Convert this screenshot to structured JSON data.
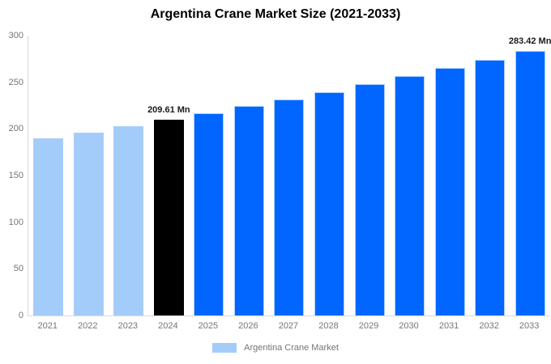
{
  "title": "Argentina Crane Market Size (2021-2033)",
  "legend": {
    "label": "Argentina Crane Market",
    "swatch_color": "#a3ccfa"
  },
  "colors": {
    "historical_bar": "#a3ccfa",
    "base_year_bar": "#000000",
    "forecast_bar": "#0066ff",
    "bar_border": "#a9cffa",
    "axis_line": "#d9d9d9",
    "axis_text": "#757575",
    "title_text": "#000000",
    "annotation_text": "#1a1a1a"
  },
  "chart_data": {
    "type": "bar",
    "title": "Argentina Crane Market Size (2021-2033)",
    "xlabel": "",
    "ylabel": "",
    "ylim": [
      0,
      300
    ],
    "y_ticks": [
      0,
      50,
      100,
      150,
      200,
      250,
      300
    ],
    "grid": false,
    "legend_position": "bottom",
    "unit": "Mn",
    "categories": [
      "2021",
      "2022",
      "2023",
      "2024",
      "2025",
      "2026",
      "2027",
      "2028",
      "2029",
      "2030",
      "2031",
      "2032",
      "2033"
    ],
    "values": [
      189.55,
      196.01,
      202.7,
      209.61,
      216.76,
      224.15,
      231.79,
      239.69,
      247.86,
      256.31,
      265.05,
      274.08,
      283.42
    ],
    "bar_colors": [
      "#a3ccfa",
      "#a3ccfa",
      "#a3ccfa",
      "#000000",
      "#0066ff",
      "#0066ff",
      "#0066ff",
      "#0066ff",
      "#0066ff",
      "#0066ff",
      "#0066ff",
      "#0066ff",
      "#0066ff"
    ],
    "annotations": [
      {
        "index": 3,
        "text": "209.61 Mn"
      },
      {
        "index": 12,
        "text": "283.42 Mn"
      }
    ]
  }
}
